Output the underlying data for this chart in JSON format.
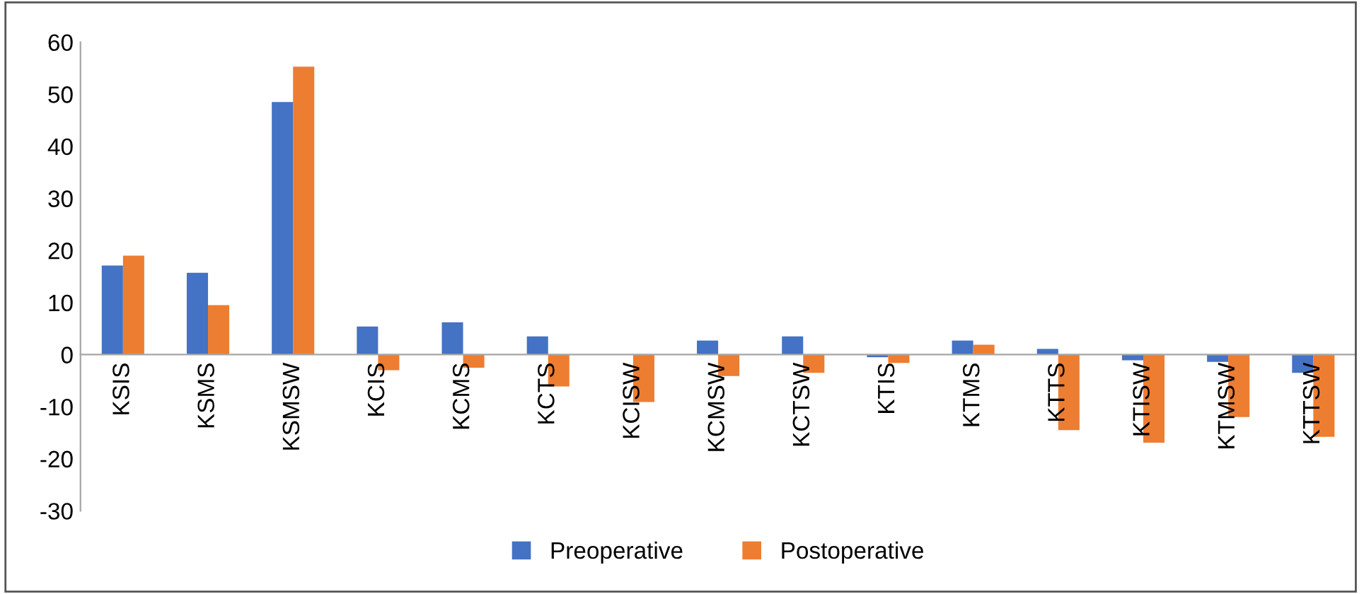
{
  "chart_data": {
    "type": "bar",
    "categories": [
      "KSIS",
      "KSMS",
      "KSMSW",
      "KCIS",
      "KCMS",
      "KCTS",
      "KCISW",
      "KCMSW",
      "KCTSW",
      "KTIS",
      "KTMS",
      "KTTS",
      "KTISW",
      "KTMSW",
      "KTTSW"
    ],
    "series": [
      {
        "name": "Preoperative",
        "color": "#4472c4",
        "values": [
          17.1,
          15.7,
          48.5,
          5.4,
          6.2,
          3.5,
          0,
          2.7,
          3.5,
          -0.5,
          2.7,
          1.1,
          -1.1,
          -1.4,
          -3.5
        ]
      },
      {
        "name": "Postoperative",
        "color": "#ed7d31",
        "values": [
          19.0,
          9.5,
          55.3,
          -3.0,
          -2.5,
          -6.1,
          -9.1,
          -4.1,
          -3.5,
          -1.6,
          1.9,
          -14.5,
          -16.9,
          -12.0,
          -15.8
        ]
      }
    ],
    "ylim": [
      -30,
      60
    ],
    "yticks": [
      -30,
      -20,
      -10,
      0,
      10,
      20,
      30,
      40,
      50,
      60
    ],
    "grid": false,
    "legend": "bottom"
  }
}
